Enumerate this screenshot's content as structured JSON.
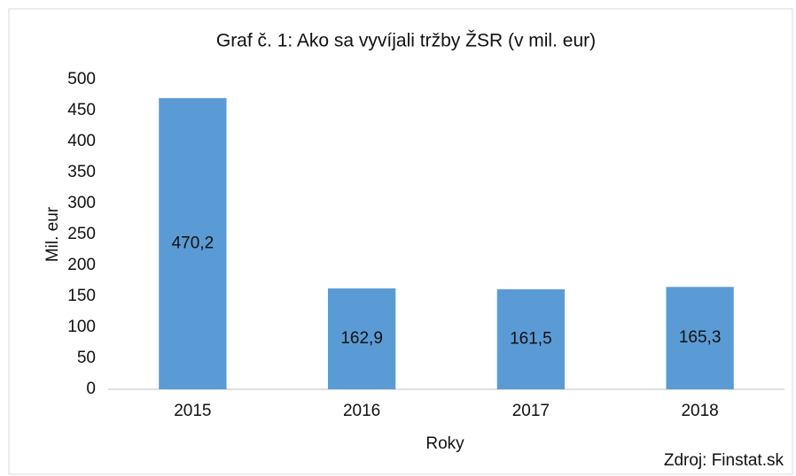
{
  "chart_data": {
    "type": "bar",
    "title": "Graf č. 1: Ako sa vyvíjali tržby ŽSR (v mil. eur)",
    "y_label": "Mil. eur",
    "x_label": "Roky",
    "source": "Zdroj: Finstat.sk",
    "categories": [
      "2015",
      "2016",
      "2017",
      "2018"
    ],
    "values": [
      470.2,
      162.9,
      161.5,
      165.3
    ],
    "value_labels": [
      "470,2",
      "162,9",
      "161,5",
      "165,3"
    ],
    "color": "#5b9bd5",
    "ylim": [
      0,
      500
    ],
    "yticks": [
      0,
      50,
      100,
      150,
      200,
      250,
      300,
      350,
      400,
      450,
      500
    ],
    "grid": false
  }
}
